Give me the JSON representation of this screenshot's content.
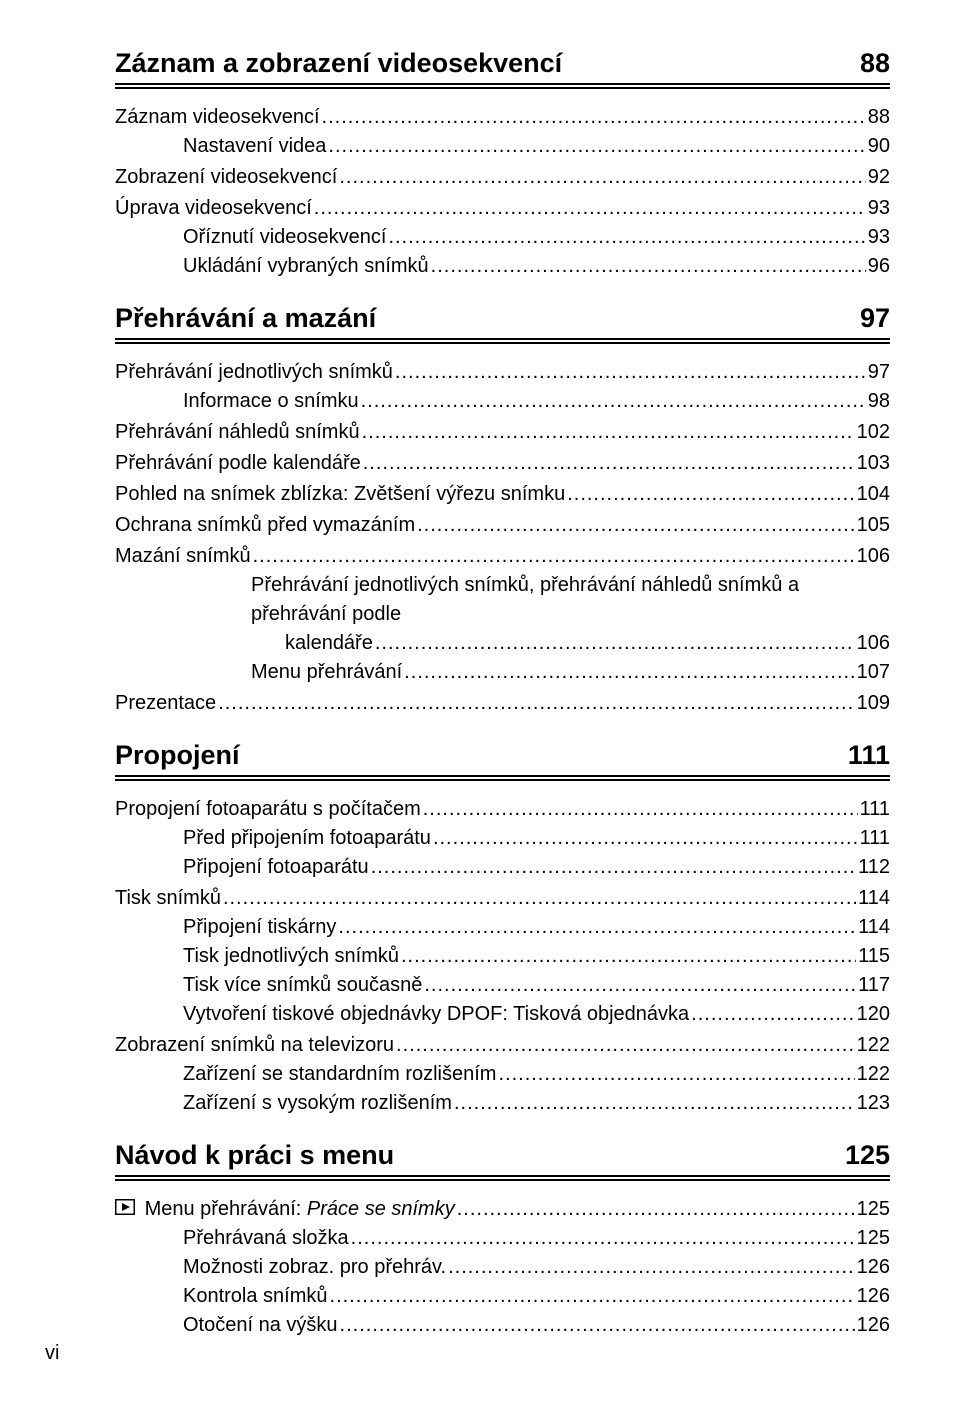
{
  "pageNumber": "vi",
  "sections": [
    {
      "title": "Záznam a zobrazení videosekvencí",
      "page": "88",
      "items": [
        {
          "level": 1,
          "label": "Záznam videosekvencí",
          "page": "88"
        },
        {
          "level": 2,
          "label": "Nastavení videa",
          "page": "90"
        },
        {
          "level": 1,
          "label": "Zobrazení videosekvencí",
          "page": "92"
        },
        {
          "level": 1,
          "label": "Úprava videosekvencí",
          "page": "93"
        },
        {
          "level": 2,
          "label": "Oříznutí videosekvencí",
          "page": "93"
        },
        {
          "level": 2,
          "label": "Ukládání vybraných snímků",
          "page": "96"
        }
      ]
    },
    {
      "title": "Přehrávání a mazání",
      "page": "97",
      "items": [
        {
          "level": 1,
          "label": "Přehrávání jednotlivých snímků",
          "page": "97"
        },
        {
          "level": 2,
          "label": "Informace o snímku",
          "page": "98"
        },
        {
          "level": 1,
          "label": "Přehrávání náhledů snímků",
          "page": "102"
        },
        {
          "level": 1,
          "label": "Přehrávání podle kalendáře",
          "page": "103"
        },
        {
          "level": 1,
          "label": "Pohled na snímek zblízka: Zvětšení výřezu snímku",
          "page": "104"
        },
        {
          "level": 1,
          "label": "Ochrana snímků před vymazáním",
          "page": "105"
        },
        {
          "level": 1,
          "label": "Mazání snímků",
          "page": "106"
        },
        {
          "level": 3,
          "wrap": true,
          "line1": "Přehrávání jednotlivých snímků, přehrávání náhledů snímků a přehrávání podle",
          "line2": "kalendáře",
          "page": "106"
        },
        {
          "level": 3,
          "label": "Menu přehrávání",
          "page": "107"
        },
        {
          "level": 1,
          "label": "Prezentace",
          "page": "109"
        }
      ]
    },
    {
      "title": "Propojení",
      "page": "111",
      "items": [
        {
          "level": 1,
          "label": "Propojení fotoaparátu s počítačem",
          "page": "111"
        },
        {
          "level": 2,
          "label": "Před připojením fotoaparátu",
          "page": "111"
        },
        {
          "level": 2,
          "label": "Připojení fotoaparátu",
          "page": "112"
        },
        {
          "level": 1,
          "label": "Tisk snímků",
          "page": "114"
        },
        {
          "level": 2,
          "label": "Připojení tiskárny",
          "page": "114"
        },
        {
          "level": 2,
          "label": "Tisk jednotlivých snímků",
          "page": "115"
        },
        {
          "level": 2,
          "label": "Tisk více snímků současně",
          "page": "117"
        },
        {
          "level": 2,
          "label": "Vytvoření tiskové objednávky DPOF: Tisková objednávka",
          "page": "120"
        },
        {
          "level": 1,
          "label": "Zobrazení snímků na televizoru",
          "page": "122"
        },
        {
          "level": 2,
          "label": "Zařízení se standardním rozlišením",
          "page": "122"
        },
        {
          "level": 2,
          "label": "Zařízení s vysokým rozlišením",
          "page": "123"
        }
      ]
    },
    {
      "title": "Návod k práci s menu",
      "page": "125",
      "items": [
        {
          "level": 1,
          "icon": "play",
          "label": "Menu přehrávání:",
          "italic": "Práce se snímky",
          "page": "125"
        },
        {
          "level": 2,
          "label": "Přehrávaná složka",
          "page": "125"
        },
        {
          "level": 2,
          "label": "Možnosti zobraz. pro přehráv.",
          "page": "126"
        },
        {
          "level": 2,
          "label": "Kontrola snímků",
          "page": "126"
        },
        {
          "level": 2,
          "label": "Otočení na výšku",
          "page": "126"
        }
      ]
    }
  ]
}
